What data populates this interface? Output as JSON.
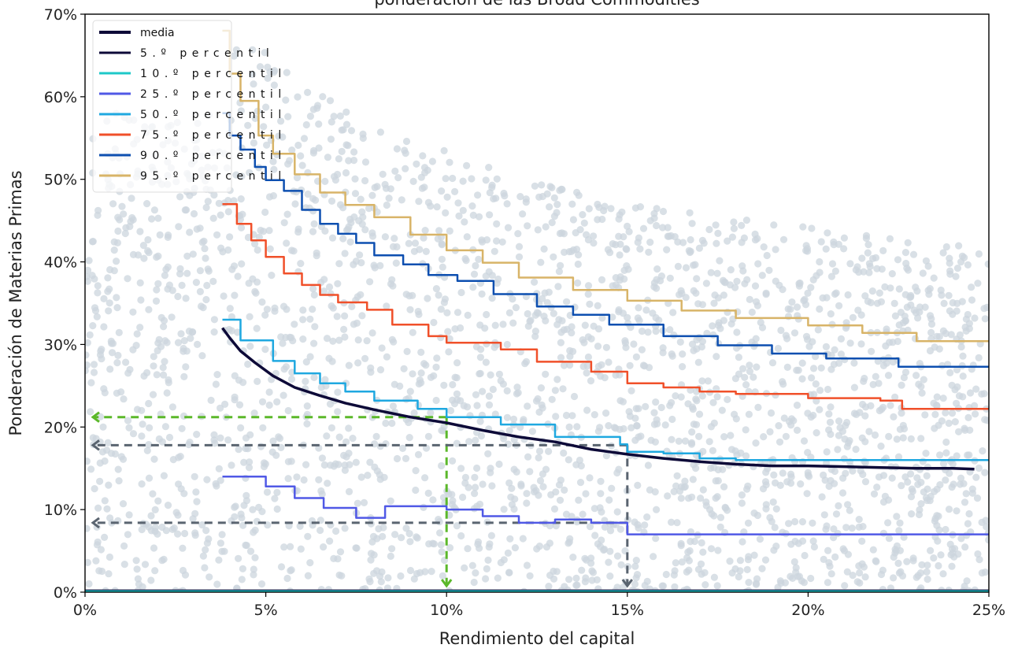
{
  "chart_data": {
    "type": "scatter",
    "title": "ponderación de las Broad Commodities",
    "xlabel": "Rendimiento del capital",
    "ylabel": "Ponderación de Materias Primas",
    "xlim": [
      0,
      25
    ],
    "ylim": [
      0,
      70
    ],
    "x_ticks": [
      "0%",
      "5%",
      "10%",
      "15%",
      "20%",
      "25%"
    ],
    "y_ticks": [
      "0%",
      "10%",
      "20%",
      "30%",
      "40%",
      "50%",
      "60%",
      "70%"
    ],
    "grid": false,
    "legend_position": "top-left",
    "scatter_color": "#ccd6de",
    "series": [
      {
        "name": "media",
        "color": "#0d0a38",
        "width": 3,
        "x": [
          3.8,
          4.0,
          4.3,
          4.7,
          5.2,
          5.8,
          6.5,
          7.2,
          8.0,
          9.0,
          10.0,
          11.0,
          12.0,
          13.0,
          14.0,
          15.0,
          16.0,
          17.0,
          18.0,
          19.0,
          20.0,
          21.0,
          22.0,
          23.0,
          24.0,
          24.6
        ],
        "y": [
          32.0,
          30.8,
          29.2,
          27.8,
          26.2,
          24.8,
          23.8,
          22.9,
          22.1,
          21.2,
          20.5,
          19.6,
          18.8,
          18.2,
          17.3,
          16.7,
          16.2,
          15.8,
          15.5,
          15.3,
          15.3,
          15.2,
          15.1,
          15.0,
          15.0,
          14.9
        ]
      },
      {
        "name": "5.º percentil",
        "color": "#0d0a38",
        "width": 2,
        "x": [
          0,
          25
        ],
        "y": [
          0.2,
          0.2
        ]
      },
      {
        "name": "10.º percentil",
        "color": "#1ec8c8",
        "width": 2,
        "x": [
          0,
          25
        ],
        "y": [
          0.1,
          0.1
        ]
      },
      {
        "name": "25.º percentil",
        "color": "#5059e6",
        "width": 2,
        "x": [
          3.8,
          5.0,
          5.8,
          6.6,
          7.5,
          8.3,
          10.0,
          11.0,
          12.0,
          13.0,
          14.0,
          15.0,
          17.8,
          25.0
        ],
        "y": [
          14.0,
          12.8,
          11.4,
          10.2,
          9.0,
          10.4,
          10.0,
          9.2,
          8.4,
          8.8,
          8.4,
          7.0,
          7.0,
          7.0
        ]
      },
      {
        "name": "50.º percentil",
        "color": "#1fa8e0",
        "width": 2,
        "x": [
          3.8,
          4.3,
          5.2,
          5.8,
          6.5,
          7.2,
          8.0,
          9.2,
          10.0,
          11.5,
          13.0,
          14.8,
          15.0,
          16.0,
          17.0,
          18.0,
          25.0
        ],
        "y": [
          33.0,
          30.5,
          28.0,
          26.5,
          25.3,
          24.3,
          23.2,
          22.2,
          21.2,
          20.3,
          18.8,
          17.9,
          17.0,
          16.8,
          16.2,
          16.0,
          16.0
        ]
      },
      {
        "name": "75.º percentil",
        "color": "#f0502a",
        "width": 2,
        "x": [
          3.8,
          4.2,
          4.6,
          5.0,
          5.5,
          6.0,
          6.5,
          7.0,
          7.8,
          8.5,
          9.5,
          10.0,
          11.5,
          12.5,
          14.0,
          15.0,
          16.0,
          17.0,
          18.0,
          20.0,
          22.0,
          22.6,
          25.0
        ],
        "y": [
          47.0,
          44.6,
          42.6,
          40.6,
          38.6,
          37.2,
          36.0,
          35.1,
          34.2,
          32.4,
          31.0,
          30.2,
          29.4,
          27.9,
          26.7,
          25.3,
          24.8,
          24.3,
          24.0,
          23.5,
          23.2,
          22.2,
          22.2
        ]
      },
      {
        "name": "90.º percentil",
        "color": "#0d4fb0",
        "width": 2,
        "x": [
          3.8,
          4.0,
          4.3,
          4.7,
          5.0,
          5.5,
          6.0,
          6.5,
          7.0,
          7.5,
          8.0,
          8.8,
          9.5,
          10.3,
          11.3,
          12.5,
          13.5,
          14.5,
          16.0,
          17.5,
          19.0,
          20.5,
          22.5,
          25.0
        ],
        "y": [
          58.0,
          55.3,
          53.6,
          51.5,
          49.9,
          48.6,
          46.3,
          44.6,
          43.4,
          42.3,
          40.8,
          39.7,
          38.4,
          37.7,
          36.1,
          34.6,
          33.6,
          32.4,
          31.0,
          29.9,
          28.9,
          28.3,
          27.3,
          27.3
        ]
      },
      {
        "name": "95.º percentil",
        "color": "#d8b468",
        "width": 2,
        "x": [
          3.8,
          4.0,
          4.3,
          4.8,
          5.2,
          5.8,
          6.5,
          7.2,
          8.0,
          9.0,
          10.0,
          11.0,
          12.0,
          13.5,
          15.0,
          16.5,
          18.0,
          20.0,
          21.5,
          23.0,
          25.0
        ],
        "y": [
          68.0,
          62.8,
          59.5,
          55.3,
          53.1,
          50.6,
          48.4,
          46.9,
          45.4,
          43.3,
          41.4,
          39.9,
          38.1,
          36.6,
          35.3,
          34.1,
          33.2,
          32.3,
          31.4,
          30.4,
          30.4
        ]
      }
    ],
    "annotations": [
      {
        "type": "guide",
        "color": "#5bb82a",
        "x": 10,
        "y": 21.2
      },
      {
        "type": "guide",
        "color": "#5a6470",
        "x": 15,
        "y": 17.8
      },
      {
        "type": "guide",
        "color": "#5a6470",
        "x": 15,
        "y": 8.4
      }
    ]
  }
}
